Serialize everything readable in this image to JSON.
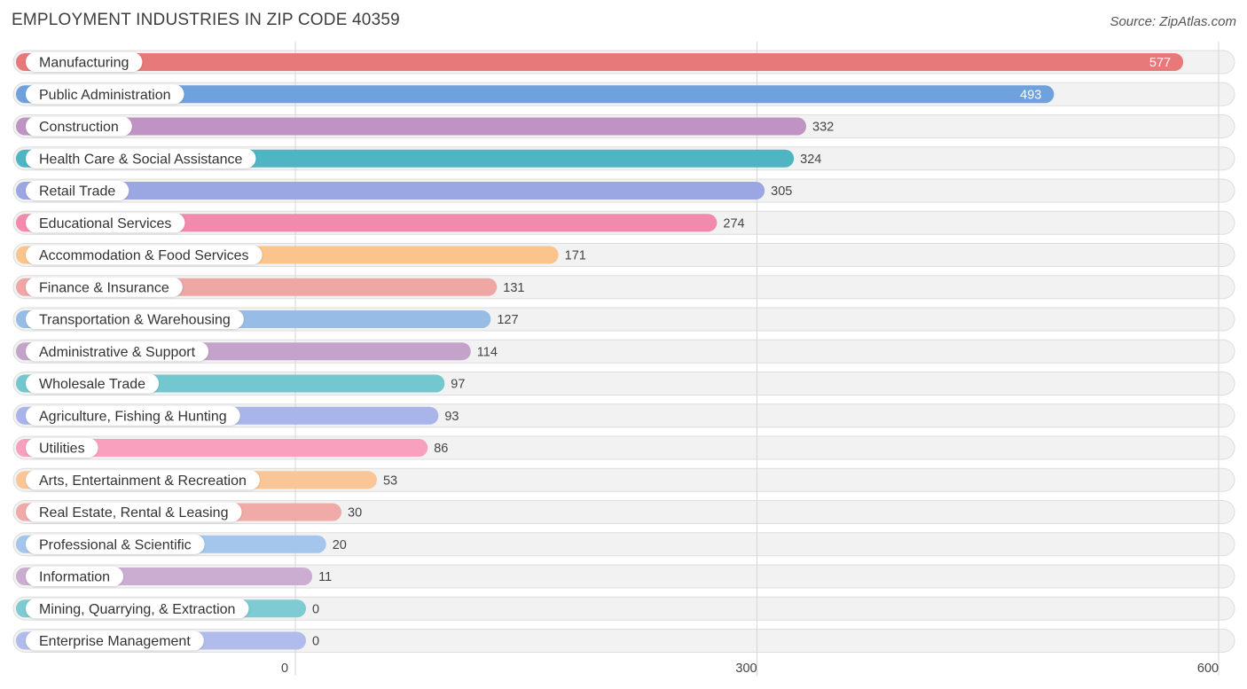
{
  "header": {
    "title": "EMPLOYMENT INDUSTRIES IN ZIP CODE 40359",
    "source": "Source: ZipAtlas.com"
  },
  "chart_data": {
    "type": "bar",
    "orientation": "horizontal",
    "title": "EMPLOYMENT INDUSTRIES IN ZIP CODE 40359",
    "xlabel": "",
    "ylabel": "",
    "xlim": [
      0,
      600
    ],
    "xticks": [
      0,
      300,
      600
    ],
    "grid": true,
    "categories": [
      "Manufacturing",
      "Public Administration",
      "Construction",
      "Health Care & Social Assistance",
      "Retail Trade",
      "Educational Services",
      "Accommodation & Food Services",
      "Finance & Insurance",
      "Transportation & Warehousing",
      "Administrative & Support",
      "Wholesale Trade",
      "Agriculture, Fishing & Hunting",
      "Utilities",
      "Arts, Entertainment & Recreation",
      "Real Estate, Rental & Leasing",
      "Professional & Scientific",
      "Information",
      "Mining, Quarrying, & Extraction",
      "Enterprise Management"
    ],
    "values": [
      577,
      493,
      332,
      324,
      305,
      274,
      171,
      131,
      127,
      114,
      97,
      93,
      86,
      53,
      30,
      20,
      11,
      0,
      0
    ],
    "colors": [
      "#e8797a",
      "#6fa1dd",
      "#bf94c4",
      "#4fb5c2",
      "#9ba7e3",
      "#f28aad",
      "#fbc48d",
      "#eea7a5",
      "#97bde7",
      "#c4a3cb",
      "#73c7cf",
      "#a9b5ea",
      "#f8a0bd",
      "#fac597",
      "#f0aaa8",
      "#a4c6ec",
      "#cbadd1",
      "#7ecbd3",
      "#b1bcec"
    ]
  }
}
